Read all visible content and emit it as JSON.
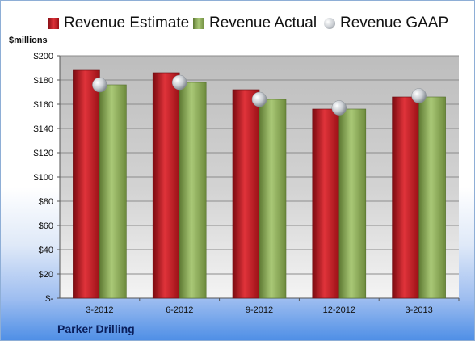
{
  "colors": {
    "estimate": "#c8161d",
    "actual": "#8fb05a",
    "gaap": "#c9cdd2",
    "plot_top": "#bfbfbf",
    "plot_bottom": "#f2f2f2"
  },
  "y_unit": "$millions",
  "company": "Parker Drilling",
  "chart_data": {
    "type": "bar",
    "categories": [
      "3-2012",
      "6-2012",
      "9-2012",
      "12-2012",
      "3-2013"
    ],
    "series": [
      {
        "name": "Revenue Estimate",
        "kind": "bar",
        "values": [
          188,
          186,
          172,
          156,
          166
        ]
      },
      {
        "name": "Revenue Actual",
        "kind": "bar",
        "values": [
          176,
          178,
          164,
          156,
          166
        ]
      },
      {
        "name": "Revenue GAAP",
        "kind": "marker",
        "values": [
          176,
          178,
          164,
          157,
          167
        ]
      }
    ],
    "yticks": [
      "$-",
      "$20",
      "$40",
      "$60",
      "$80",
      "$100",
      "$120",
      "$140",
      "$160",
      "$180",
      "$200"
    ],
    "ylim": [
      0,
      200
    ],
    "grid": true,
    "legend": "top"
  }
}
